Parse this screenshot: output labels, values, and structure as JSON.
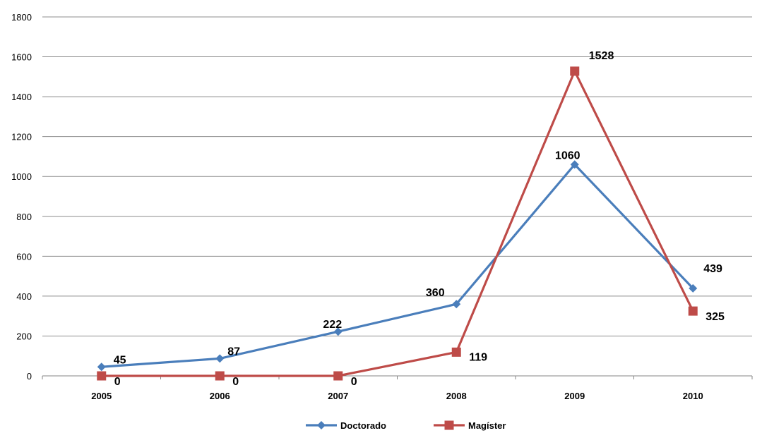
{
  "chart_data": {
    "type": "line",
    "categories": [
      "2005",
      "2006",
      "2007",
      "2008",
      "2009",
      "2010"
    ],
    "ylim": [
      0,
      1800
    ],
    "yticks": [
      0,
      200,
      400,
      600,
      800,
      1000,
      1200,
      1400,
      1600,
      1800
    ],
    "grid": true,
    "legend_position": "bottom",
    "series": [
      {
        "name": "Doctorado",
        "values": [
          45,
          87,
          222,
          360,
          1060,
          439
        ],
        "color": "#4a7ebb",
        "marker": "diamond"
      },
      {
        "name": "Magíster",
        "values": [
          0,
          0,
          0,
          119,
          1528,
          325
        ],
        "color": "#be4b48",
        "marker": "square"
      }
    ]
  }
}
